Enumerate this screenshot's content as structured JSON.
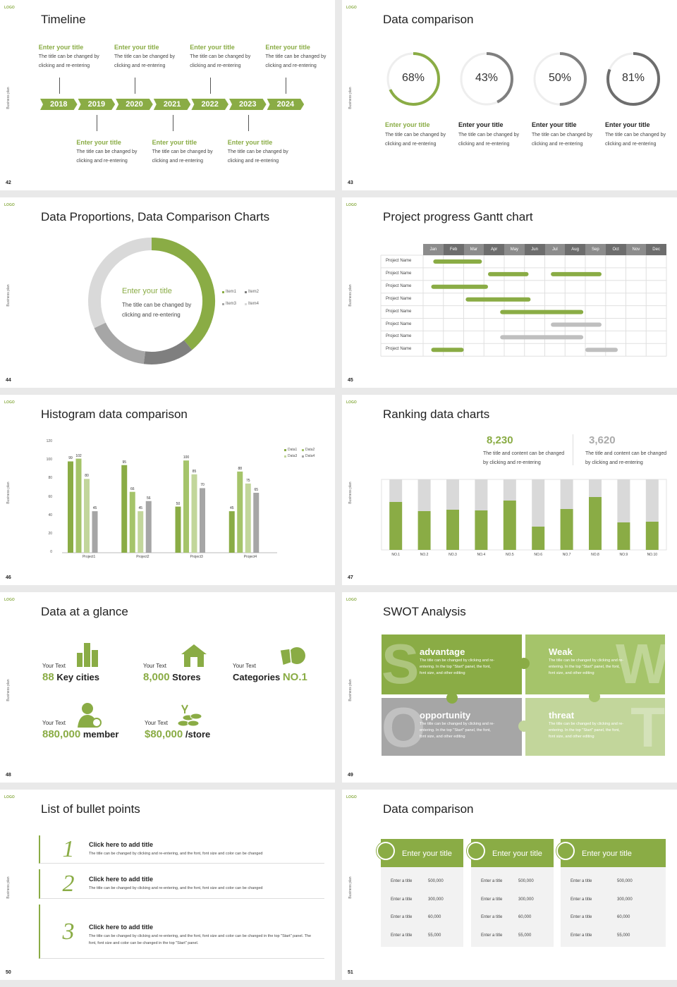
{
  "slides": [
    {
      "number": 42,
      "logo": "LOGO",
      "side": "Business plan",
      "title": "Timeline",
      "years": [
        2018,
        2019,
        2020,
        2021,
        2022,
        2023,
        2024
      ],
      "events": [
        {
          "title": "Enter your title",
          "text": "The title can be changed by clicking and re-entering"
        },
        {
          "title": "Enter your title",
          "text": "The title can be changed by clicking and re-entering"
        },
        {
          "title": "Enter your title",
          "text": "The title can be changed by clicking and re-entering"
        },
        {
          "title": "Enter your title",
          "text": "The title can be changed by clicking and re-entering"
        },
        {
          "title": "Enter your title",
          "text": "The title can be changed by clicking and re-entering"
        },
        {
          "title": "Enter your title",
          "text": "The title can be changed by clicking and re-entering"
        },
        {
          "title": "Enter your title",
          "text": "The title can be changed by clicking and re-entering"
        }
      ]
    },
    {
      "number": 43,
      "logo": "LOGO",
      "side": "Business plan",
      "title": "Data comparison",
      "chart": {
        "type": "ring",
        "values": [
          68,
          43,
          50,
          81
        ],
        "value_labels": [
          "68%",
          "43%",
          "50%",
          "81%"
        ],
        "colors": [
          "#8aac45",
          "#7f7f7f",
          "#7f7f7f",
          "#6d6d6d"
        ]
      },
      "items": [
        {
          "title": "Enter your title",
          "text": "The title can be changed by clicking and re-entering"
        },
        {
          "title": "Enter your title",
          "text": "The title can be changed by clicking and re-entering"
        },
        {
          "title": "Enter your title",
          "text": "The title can be changed by clicking and re-entering"
        },
        {
          "title": "Enter your title",
          "text": "The title can be changed by clicking and re-entering"
        }
      ]
    },
    {
      "number": 44,
      "logo": "LOGO",
      "side": "Business plan",
      "title": "Data Proportions, Data Comparison Charts",
      "chart": {
        "type": "pie",
        "title": "Enter your title",
        "text": "The title can be changed by clicking and re-entering",
        "categories": [
          "Item1",
          "Item2",
          "Item3",
          "Item4"
        ],
        "values": [
          39,
          13,
          16,
          32
        ],
        "colors": [
          "#8aac45",
          "#7f7f7f",
          "#a6a6a6",
          "#d9d9d9"
        ]
      }
    },
    {
      "number": 45,
      "logo": "LOGO",
      "side": "Business plan",
      "title": "Project progress Gantt chart",
      "chart": {
        "type": "gantt",
        "xlim": [
          0,
          12
        ],
        "months": [
          "Jan",
          "Feb",
          "Mar",
          "Apr",
          "May",
          "Jun",
          "Jul",
          "Aug",
          "Sep",
          "Oct",
          "Nov",
          "Dec"
        ],
        "rows": [
          {
            "name": "Project Name",
            "tasks": [
              {
                "start": 0.5,
                "end": 2.9,
                "color": "#8aac45"
              }
            ]
          },
          {
            "name": "Project Name",
            "tasks": [
              {
                "start": 3.2,
                "end": 5.2,
                "color": "#8aac45"
              },
              {
                "start": 6.3,
                "end": 8.8,
                "color": "#8aac45"
              }
            ]
          },
          {
            "name": "Project Name",
            "tasks": [
              {
                "start": 0.4,
                "end": 3.2,
                "color": "#8aac45"
              }
            ]
          },
          {
            "name": "Project Name",
            "tasks": [
              {
                "start": 2.1,
                "end": 5.3,
                "color": "#8aac45"
              }
            ]
          },
          {
            "name": "Project Name",
            "tasks": [
              {
                "start": 3.8,
                "end": 7.9,
                "color": "#8aac45"
              }
            ]
          },
          {
            "name": "Project Name",
            "tasks": [
              {
                "start": 6.3,
                "end": 8.8,
                "color": "#bfbfbf"
              }
            ]
          },
          {
            "name": "Project Name",
            "tasks": [
              {
                "start": 3.8,
                "end": 7.9,
                "color": "#bfbfbf"
              }
            ]
          },
          {
            "name": "Project Name",
            "tasks": [
              {
                "start": 0.4,
                "end": 2.0,
                "color": "#8aac45"
              },
              {
                "start": 8.0,
                "end": 9.6,
                "color": "#bfbfbf"
              }
            ]
          }
        ]
      }
    },
    {
      "number": 46,
      "logo": "LOGO",
      "side": "Business plan",
      "title": "Histogram data comparison",
      "chart": {
        "type": "bar",
        "categories": [
          "Project1",
          "Project2",
          "Project3",
          "Project4"
        ],
        "ylim": [
          0,
          120
        ],
        "yticks": [
          0,
          20,
          40,
          60,
          80,
          100,
          120
        ],
        "grid": false,
        "series": [
          {
            "name": "Data1",
            "color": "#8aac45",
            "values": [
              99,
              95,
              50,
              45
            ]
          },
          {
            "name": "Data2",
            "color": "#a5c46a",
            "values": [
              102,
              66,
              100,
              88
            ]
          },
          {
            "name": "Data3",
            "color": "#c2d69b",
            "values": [
              80,
              45,
              85,
              75
            ]
          },
          {
            "name": "Data4",
            "color": "#a6a6a6",
            "values": [
              45,
              56,
              70,
              65
            ]
          }
        ]
      }
    },
    {
      "number": 47,
      "logo": "LOGO",
      "side": "Business plan",
      "title": "Ranking data charts",
      "stats": [
        {
          "value": "8,230",
          "text": "The title and content can be changed by clicking and re-entering"
        },
        {
          "value": "3,620",
          "text": "The title and content can be changed by clicking and re-entering"
        }
      ],
      "chart": {
        "type": "stacked-bar",
        "ylim": [
          0,
          100
        ],
        "categories": [
          "NO.1",
          "NO.2",
          "NO.3",
          "NO.4",
          "NO.5",
          "NO.6",
          "NO.7",
          "NO.8",
          "NO.9",
          "NO.10"
        ],
        "series": [
          {
            "color": "#8aac45",
            "values": [
              68,
              55,
              57,
              56,
              70,
              33,
              58,
              75,
              39,
              40
            ]
          },
          {
            "color": "#d9d9d9",
            "values": [
              32,
              45,
              43,
              44,
              30,
              67,
              42,
              25,
              61,
              60
            ]
          }
        ]
      }
    },
    {
      "number": 48,
      "logo": "LOGO",
      "side": "Business plan",
      "title": "Data at a glance",
      "items": [
        {
          "label": "Your Text",
          "value": "88",
          "unit": "Key cities"
        },
        {
          "label": "Your Text",
          "value": "8,000",
          "unit": "Stores"
        },
        {
          "label": "Your Text",
          "prefix": "Categories",
          "value": "NO.1"
        },
        {
          "label": "Your Text",
          "value": "880,000",
          "unit": "member"
        },
        {
          "label": "Your Text",
          "value": "$80,000",
          "unit": "/store"
        }
      ]
    },
    {
      "number": 49,
      "logo": "LOGO",
      "side": "Business plan",
      "title": "SWOT Analysis",
      "quadrants": [
        {
          "letter": "S",
          "title": "advantage",
          "text": "The title can be changed by clicking and re-entering. In the top \"Start\" panel, the font, font size, and other editing"
        },
        {
          "letter": "W",
          "title": "Weak",
          "text": "The title can be changed by clicking and re-entering. In the top \"Start\" panel, the font, font size, and other editing"
        },
        {
          "letter": "O",
          "title": "opportunity",
          "text": "The title can be changed by clicking and re-entering. In the top \"Start\" panel, the font, font size, and other editing"
        },
        {
          "letter": "T",
          "title": "threat",
          "text": "The title can be changed by clicking and re-entering. In the top \"Start\" panel, the font, font size, and other editing"
        }
      ]
    },
    {
      "number": 50,
      "logo": "LOGO",
      "side": "Business plan",
      "title": "List of bullet points",
      "bullets": [
        {
          "number": 1,
          "title": "Click here to add title",
          "text": "The title can be changed by clicking and re-entering, and the font, font size and color can be changed"
        },
        {
          "number": 2,
          "title": "Click here to add title",
          "text": "The title can be changed by clicking and re-entering, and the font, font size and color can be changed"
        },
        {
          "number": 3,
          "title": "Click here to add title",
          "text": "The title can be changed by clicking and re-entering, and the font, font size and color can be changed in the top \"Start\" panel. The font, font size and color can be changed in the top \"Start\" panel."
        }
      ]
    },
    {
      "number": 51,
      "logo": "LOGO",
      "side": "Business plan",
      "title": "Data comparison",
      "cards": [
        {
          "title": "Enter your title",
          "rows": [
            {
              "label": "Enter a title",
              "value": "500,000"
            },
            {
              "label": "Enter a title",
              "value": "300,000"
            },
            {
              "label": "Enter a title",
              "value": "60,000"
            },
            {
              "label": "Enter a title",
              "value": "55,000"
            }
          ]
        },
        {
          "title": "Enter your title",
          "rows": [
            {
              "label": "Enter a title",
              "value": "500,000"
            },
            {
              "label": "Enter a title",
              "value": "300,000"
            },
            {
              "label": "Enter a title",
              "value": "60,000"
            },
            {
              "label": "Enter a title",
              "value": "55,000"
            }
          ]
        },
        {
          "title": "Enter your title",
          "rows": [
            {
              "label": "Enter a title",
              "value": "500,000"
            },
            {
              "label": "Enter a title",
              "value": "300,000"
            },
            {
              "label": "Enter a title",
              "value": "60,000"
            },
            {
              "label": "Enter a title",
              "value": "55,000"
            }
          ]
        }
      ]
    }
  ]
}
